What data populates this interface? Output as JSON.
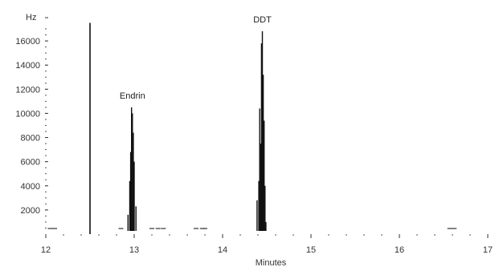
{
  "chart_data": {
    "type": "line",
    "title": "",
    "xlabel": "Minutes",
    "ylabel": "Hz",
    "xlim": [
      11.9,
      17
    ],
    "ylim": [
      0,
      17000
    ],
    "x_ticks": [
      12,
      13,
      14,
      15,
      16,
      17
    ],
    "x_tick_labels": [
      "12",
      "13",
      "14",
      "15",
      "16",
      "17"
    ],
    "y_ticks": [
      2000,
      4000,
      6000,
      8000,
      10000,
      12000,
      14000,
      16000
    ],
    "y_tick_labels": [
      "2000",
      "4000",
      "6000",
      "8000",
      "10000",
      "12000",
      "14000",
      "16000"
    ],
    "grid": false,
    "marker_line": {
      "x": 12.5,
      "value": 17500
    },
    "annotations": [
      {
        "text": "Endrin",
        "x": 12.98,
        "y": 10700
      },
      {
        "text": "DDT",
        "x": 14.45,
        "y": 17000
      }
    ],
    "peaks": [
      {
        "name": "Endrin",
        "x": [
          12.93,
          12.95,
          12.96,
          12.97,
          12.98,
          12.99,
          13.0,
          13.02
        ],
        "y": [
          1600,
          4400,
          6800,
          10500,
          10000,
          8400,
          6000,
          2300
        ]
      },
      {
        "name": "DDT",
        "x": [
          14.39,
          14.41,
          14.42,
          14.43,
          14.44,
          14.45,
          14.46,
          14.47,
          14.48,
          14.49
        ],
        "y": [
          2800,
          4400,
          10400,
          7500,
          15800,
          16800,
          13200,
          9400,
          4000,
          1000
        ]
      }
    ],
    "baseline_blips": [
      12.05,
      12.1,
      12.85,
      13.2,
      13.27,
      13.33,
      13.7,
      13.77,
      13.8,
      16.57,
      16.62
    ]
  }
}
